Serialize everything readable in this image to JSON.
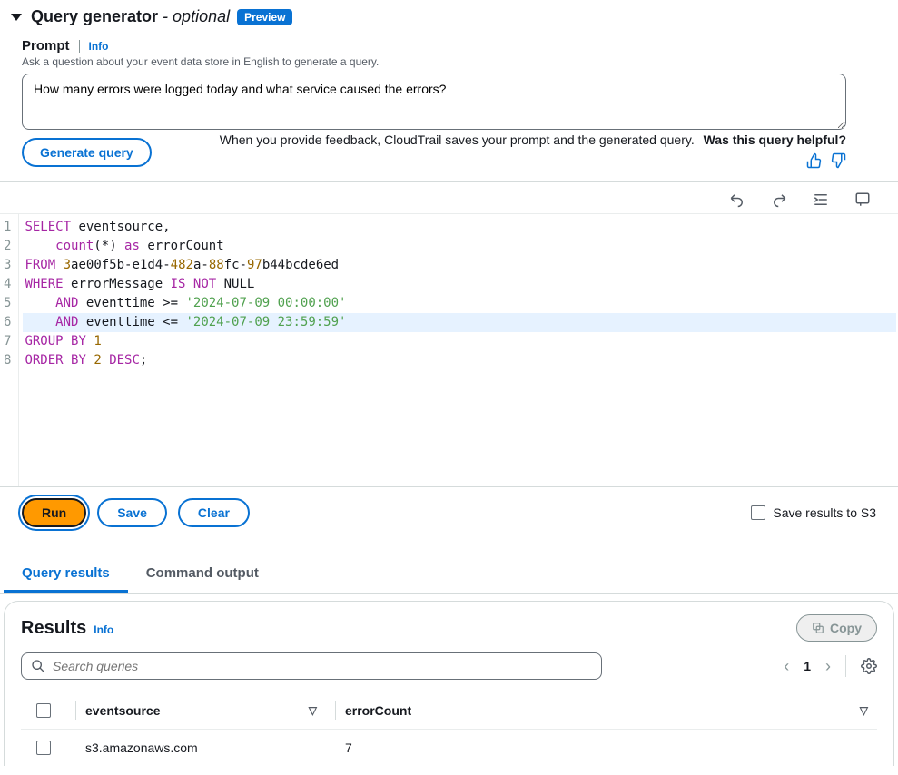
{
  "header": {
    "title": "Query generator",
    "optional_suffix": " - optional",
    "badge": "Preview"
  },
  "prompt": {
    "label": "Prompt",
    "info": "Info",
    "description": "Ask a question about your event data store in English to generate a query.",
    "value": "How many errors were logged today and what service caused the errors?",
    "feedback_text": "When you provide feedback, CloudTrail saves your prompt and the generated query.",
    "helpful_text": "Was this query helpful?",
    "generate_label": "Generate query"
  },
  "editor": {
    "lines": [
      [
        {
          "t": "SELECT",
          "c": "kw-up"
        },
        {
          "t": " eventsource,",
          "c": "id"
        }
      ],
      [
        {
          "t": "    ",
          "c": "id"
        },
        {
          "t": "count",
          "c": "fn"
        },
        {
          "t": "(",
          "c": "punct"
        },
        {
          "t": "*",
          "c": "punct"
        },
        {
          "t": ") ",
          "c": "punct"
        },
        {
          "t": "as",
          "c": "kw-up"
        },
        {
          "t": " errorCount",
          "c": "id"
        }
      ],
      [
        {
          "t": "FROM",
          "c": "kw-up"
        },
        {
          "t": " ",
          "c": "id"
        },
        {
          "t": "3",
          "c": "num"
        },
        {
          "t": "ae00f5b",
          "c": "id"
        },
        {
          "t": "-",
          "c": "punct"
        },
        {
          "t": "e1d4",
          "c": "id"
        },
        {
          "t": "-",
          "c": "punct"
        },
        {
          "t": "482",
          "c": "num"
        },
        {
          "t": "a",
          "c": "id"
        },
        {
          "t": "-",
          "c": "punct"
        },
        {
          "t": "88",
          "c": "num"
        },
        {
          "t": "fc",
          "c": "id"
        },
        {
          "t": "-",
          "c": "punct"
        },
        {
          "t": "97",
          "c": "num"
        },
        {
          "t": "b44bcde6ed",
          "c": "id"
        }
      ],
      [
        {
          "t": "WHERE",
          "c": "kw-up"
        },
        {
          "t": " errorMessage ",
          "c": "id"
        },
        {
          "t": "IS",
          "c": "kw-up"
        },
        {
          "t": " ",
          "c": "id"
        },
        {
          "t": "NOT",
          "c": "kw-up"
        },
        {
          "t": " NULL",
          "c": "id"
        }
      ],
      [
        {
          "t": "    ",
          "c": "id"
        },
        {
          "t": "AND",
          "c": "kw-up"
        },
        {
          "t": " eventtime ",
          "c": "id"
        },
        {
          "t": ">=",
          "c": "punct"
        },
        {
          "t": " ",
          "c": "id"
        },
        {
          "t": "'2024-07-09 00:00:00'",
          "c": "str"
        }
      ],
      [
        {
          "t": "    ",
          "c": "id"
        },
        {
          "t": "AND",
          "c": "kw-up"
        },
        {
          "t": " eventtime ",
          "c": "id"
        },
        {
          "t": "<=",
          "c": "punct"
        },
        {
          "t": " ",
          "c": "id"
        },
        {
          "t": "'2024-07-09 23:59:59'",
          "c": "str"
        }
      ],
      [
        {
          "t": "GROUP",
          "c": "kw-up"
        },
        {
          "t": " ",
          "c": "id"
        },
        {
          "t": "BY",
          "c": "kw-up"
        },
        {
          "t": " ",
          "c": "id"
        },
        {
          "t": "1",
          "c": "num"
        }
      ],
      [
        {
          "t": "ORDER",
          "c": "kw-up"
        },
        {
          "t": " ",
          "c": "id"
        },
        {
          "t": "BY",
          "c": "kw-up"
        },
        {
          "t": " ",
          "c": "id"
        },
        {
          "t": "2",
          "c": "num"
        },
        {
          "t": " ",
          "c": "id"
        },
        {
          "t": "DESC",
          "c": "kw-up"
        },
        {
          "t": ";",
          "c": "punct"
        }
      ]
    ],
    "highlight_line": 6
  },
  "actions": {
    "run": "Run",
    "save": "Save",
    "clear": "Clear",
    "save_results": "Save results to S3"
  },
  "tabs": {
    "results": "Query results",
    "command": "Command output"
  },
  "results": {
    "title": "Results",
    "info": "Info",
    "copy": "Copy",
    "search_placeholder": "Search queries",
    "page": "1",
    "columns": [
      "eventsource",
      "errorCount"
    ],
    "rows": [
      [
        "s3.amazonaws.com",
        "7"
      ]
    ]
  },
  "colors": {
    "primary": "#0972d3",
    "orange": "#ff9900",
    "border": "#d5dbdb",
    "text": "#16191f",
    "muted": "#545b64"
  }
}
